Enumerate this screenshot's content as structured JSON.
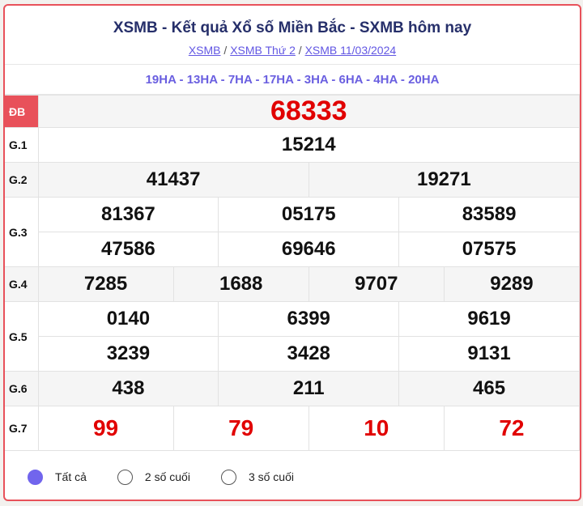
{
  "header": {
    "title": "XSMB - Kết quả Xổ số Miền Bắc - SXMB hôm nay",
    "breadcrumb": [
      "XSMB",
      "XSMB Thứ 2",
      "XSMB 11/03/2024"
    ],
    "sep": "/"
  },
  "codes": "19HA - 13HA - 7HA - 17HA - 3HA - 6HA - 4HA - 20HA",
  "prizes": {
    "db": {
      "label": "ĐB",
      "values": [
        "68333"
      ]
    },
    "g1": {
      "label": "G.1",
      "values": [
        "15214"
      ]
    },
    "g2": {
      "label": "G.2",
      "values": [
        "41437",
        "19271"
      ]
    },
    "g3": {
      "label": "G.3",
      "values": [
        "81367",
        "05175",
        "83589",
        "47586",
        "69646",
        "07575"
      ]
    },
    "g4": {
      "label": "G.4",
      "values": [
        "7285",
        "1688",
        "9707",
        "9289"
      ]
    },
    "g5": {
      "label": "G.5",
      "values": [
        "0140",
        "6399",
        "9619",
        "3239",
        "3428",
        "9131"
      ]
    },
    "g6": {
      "label": "G.6",
      "values": [
        "438",
        "211",
        "465"
      ]
    },
    "g7": {
      "label": "G.7",
      "values": [
        "99",
        "79",
        "10",
        "72"
      ]
    }
  },
  "filter": {
    "options": [
      "Tất cả",
      "2 số cuối",
      "3 số cuối"
    ],
    "selected": "Tất cả"
  },
  "colors": {
    "accent": "#e8515a",
    "title": "#262f6a",
    "link": "#6257e3",
    "highlight": "#e10000"
  }
}
